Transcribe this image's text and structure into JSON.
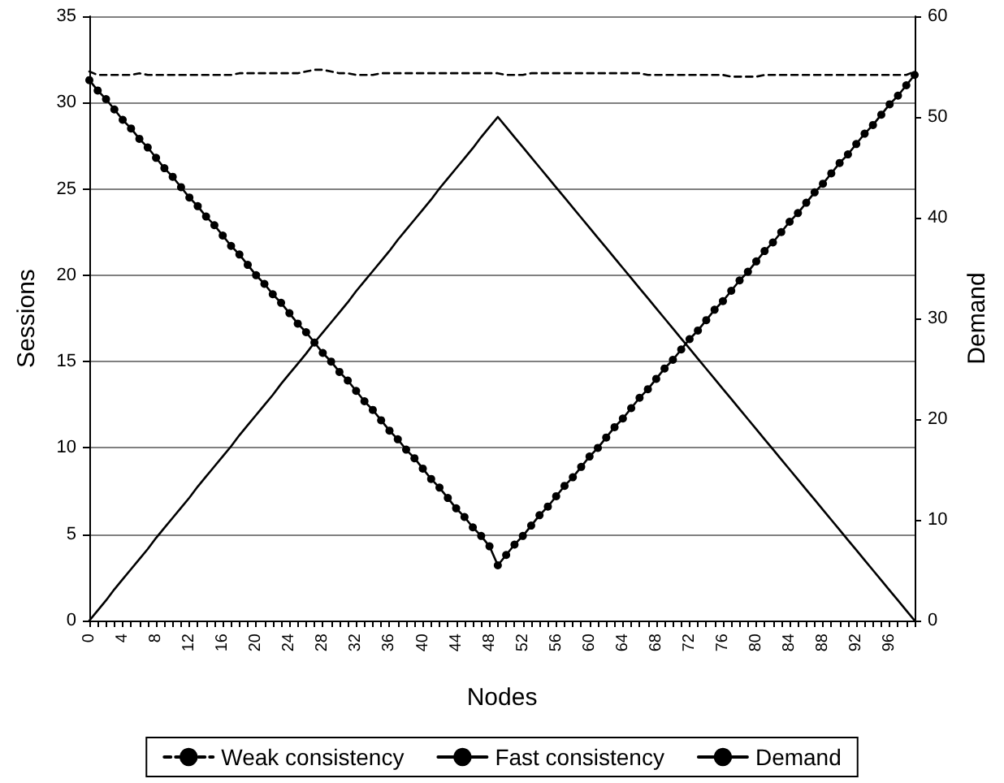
{
  "chart_data": {
    "type": "line",
    "xlabel": "Nodes",
    "ylabel": "Sessions",
    "y2label": "Demand",
    "categories": [
      "0",
      null,
      null,
      null,
      "4",
      null,
      null,
      null,
      "8",
      null,
      null,
      null,
      "12",
      null,
      null,
      null,
      "16",
      null,
      null,
      null,
      "20",
      null,
      null,
      null,
      "24",
      null,
      null,
      null,
      "28",
      null,
      null,
      null,
      "32",
      null,
      null,
      null,
      "36",
      null,
      null,
      null,
      "40",
      null,
      null,
      null,
      "44",
      null,
      null,
      null,
      "48",
      null,
      null,
      null,
      "52",
      null,
      null,
      null,
      "56",
      null,
      null,
      null,
      "60",
      null,
      null,
      null,
      "64",
      null,
      null,
      null,
      "68",
      null,
      null,
      null,
      "72",
      null,
      null,
      null,
      "76",
      null,
      null,
      null,
      "80",
      null,
      null,
      null,
      "84",
      null,
      null,
      null,
      "88",
      null,
      null,
      null,
      "92",
      null,
      null,
      null,
      "96",
      null,
      null,
      null
    ],
    "series": [
      {
        "name": "Weak consistency",
        "color": "#000000",
        "line_style": "dashed",
        "marker": "none",
        "values": [
          31.8,
          31.6,
          31.6,
          31.6,
          31.6,
          31.6,
          31.7,
          31.6,
          31.6,
          31.6,
          31.6,
          31.6,
          31.6,
          31.6,
          31.6,
          31.6,
          31.6,
          31.6,
          31.7,
          31.7,
          31.7,
          31.7,
          31.7,
          31.7,
          31.7,
          31.7,
          31.8,
          31.9,
          31.9,
          31.8,
          31.7,
          31.7,
          31.6,
          31.6,
          31.6,
          31.7,
          31.7,
          31.7,
          31.7,
          31.7,
          31.7,
          31.7,
          31.7,
          31.7,
          31.7,
          31.7,
          31.7,
          31.7,
          31.7,
          31.7,
          31.6,
          31.6,
          31.6,
          31.7,
          31.7,
          31.7,
          31.7,
          31.7,
          31.7,
          31.7,
          31.7,
          31.7,
          31.7,
          31.7,
          31.7,
          31.7,
          31.7,
          31.6,
          31.6,
          31.6,
          31.6,
          31.6,
          31.6,
          31.6,
          31.6,
          31.6,
          31.6,
          31.5,
          31.5,
          31.5,
          31.5,
          31.6,
          31.6,
          31.6,
          31.6,
          31.6,
          31.6,
          31.6,
          31.6,
          31.6,
          31.6,
          31.6,
          31.6,
          31.6,
          31.6,
          31.6,
          31.6,
          31.6,
          31.6,
          31.8
        ]
      },
      {
        "name": "Fast consistency",
        "color": "#000000",
        "line_style": "solid",
        "marker": "circle",
        "values": [
          31.3,
          30.7,
          30.2,
          29.6,
          29.0,
          28.5,
          27.9,
          27.4,
          26.8,
          26.2,
          25.7,
          25.1,
          24.5,
          24.0,
          23.4,
          22.9,
          22.3,
          21.7,
          21.2,
          20.6,
          20.0,
          19.5,
          18.9,
          18.4,
          17.8,
          17.2,
          16.7,
          16.1,
          15.5,
          15.0,
          14.4,
          13.9,
          13.3,
          12.7,
          12.2,
          11.6,
          11.0,
          10.5,
          9.9,
          9.4,
          8.8,
          8.2,
          7.7,
          7.1,
          6.5,
          6.0,
          5.4,
          4.9,
          4.3,
          3.2,
          3.8,
          4.4,
          4.9,
          5.5,
          6.1,
          6.6,
          7.2,
          7.8,
          8.3,
          8.9,
          9.5,
          10.0,
          10.6,
          11.2,
          11.7,
          12.3,
          12.9,
          13.4,
          14.0,
          14.6,
          15.1,
          15.7,
          16.3,
          16.8,
          17.4,
          18.0,
          18.5,
          19.1,
          19.7,
          20.2,
          20.8,
          21.4,
          21.9,
          22.5,
          23.1,
          23.6,
          24.2,
          24.8,
          25.3,
          25.9,
          26.5,
          27.0,
          27.6,
          28.2,
          28.7,
          29.3,
          29.9,
          30.4,
          31.0,
          31.6
        ]
      },
      {
        "name": "Demand",
        "color": "#000000",
        "line_style": "solid",
        "marker": "none",
        "axis": "y2",
        "values": [
          0,
          1.0,
          2.0,
          3.1,
          4.1,
          5.1,
          6.1,
          7.1,
          8.2,
          9.2,
          10.2,
          11.2,
          12.2,
          13.3,
          14.3,
          15.3,
          16.3,
          17.3,
          18.4,
          19.4,
          20.4,
          21.4,
          22.4,
          23.5,
          24.5,
          25.5,
          26.5,
          27.6,
          28.6,
          29.6,
          30.6,
          31.6,
          32.7,
          33.7,
          34.7,
          35.7,
          36.7,
          37.8,
          38.8,
          39.8,
          40.8,
          41.8,
          42.9,
          43.9,
          44.9,
          45.9,
          46.9,
          48.0,
          49.0,
          50,
          49,
          48,
          47,
          46,
          45,
          44,
          43,
          42,
          41,
          40,
          39,
          38,
          37,
          36,
          35,
          34,
          33,
          32,
          31,
          30,
          29,
          28,
          27,
          26,
          25,
          24,
          23,
          22,
          21,
          20,
          19,
          18,
          17,
          16,
          15,
          14,
          13,
          12,
          11,
          10,
          9,
          8,
          7,
          6,
          5,
          4,
          3,
          2,
          1,
          0
        ]
      }
    ],
    "ylim": [
      0,
      35
    ],
    "yticks": [
      0,
      5,
      10,
      15,
      20,
      25,
      30,
      35
    ],
    "y2lim": [
      0,
      60
    ],
    "y2ticks": [
      0,
      10,
      20,
      30,
      40,
      50,
      60
    ],
    "grid": "y",
    "legend": "bottom"
  }
}
